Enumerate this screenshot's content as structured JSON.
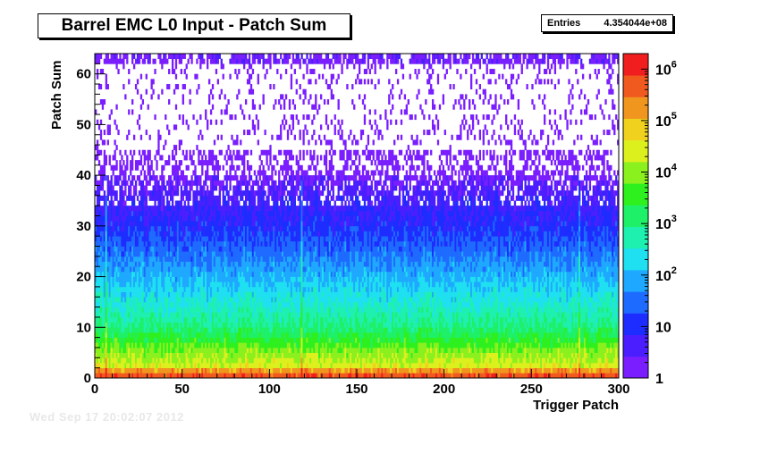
{
  "title": "Barrel EMC L0 Input - Patch Sum",
  "stats": {
    "label": "Entries",
    "value": "4.354044e+08"
  },
  "footer_text": "Wed Sep 17 20:02:07 2012",
  "chart_data": {
    "type": "heatmap",
    "title": "Barrel EMC L0 Input - Patch Sum",
    "xlabel": "Trigger Patch",
    "ylabel": "Patch Sum",
    "xlim": [
      0,
      300
    ],
    "ylim": [
      0,
      64
    ],
    "x_ticks": [
      "0",
      "50",
      "100",
      "150",
      "200",
      "250",
      "300"
    ],
    "y_ticks": [
      "0",
      "10",
      "20",
      "30",
      "40",
      "50",
      "60"
    ],
    "z_scale": "log",
    "zlim": [
      1,
      2000000
    ],
    "colorbar_ticks": [
      "1",
      "10",
      "10^2",
      "10^3",
      "10^4",
      "10^5",
      "10^6"
    ],
    "entries": "4.354044e+08",
    "description_profile": {
      "peak_row_y": 1,
      "peak_count_approx": 1000000,
      "counts_by_patch_sum": [
        [
          0,
          300000
        ],
        [
          1,
          1000000
        ],
        [
          2,
          30000
        ],
        [
          5,
          10000
        ],
        [
          10,
          1000
        ],
        [
          15,
          300
        ],
        [
          20,
          100
        ],
        [
          25,
          30
        ],
        [
          30,
          10
        ],
        [
          35,
          5
        ],
        [
          40,
          2
        ],
        [
          45,
          1
        ],
        [
          50,
          1
        ],
        [
          60,
          1
        ],
        [
          62,
          2
        ]
      ],
      "bright_columns_x": [
        6,
        118,
        277
      ]
    },
    "grid": false,
    "legend": "colorbar-right"
  },
  "colors": {
    "palette": [
      "#7a1eff",
      "#4b1eff",
      "#1e2dff",
      "#1e6bff",
      "#1ea8ff",
      "#1ee0f0",
      "#1ef0b0",
      "#1ef068",
      "#2ef01e",
      "#8af01e",
      "#dcf01e",
      "#f0d21e",
      "#f0961e",
      "#f05a1e",
      "#f01e1e"
    ]
  }
}
